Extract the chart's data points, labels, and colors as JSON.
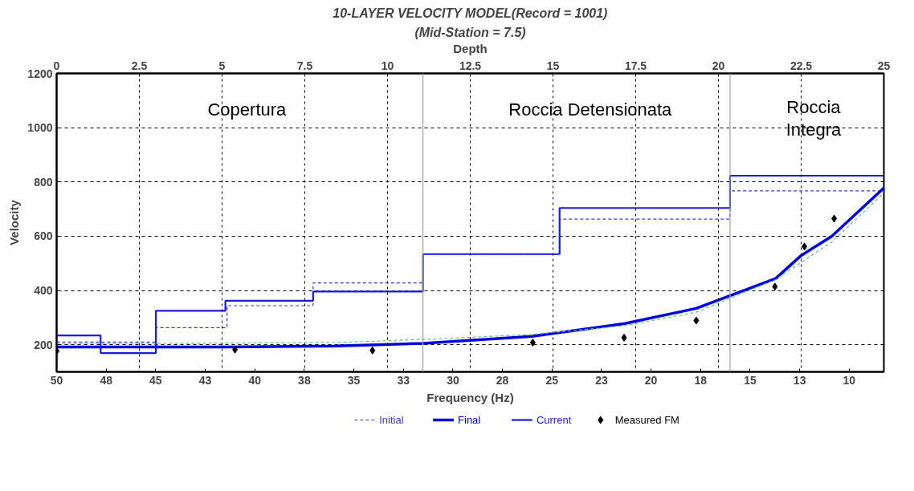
{
  "chart_data": {
    "type": "line",
    "title": "10-LAYER VELOCITY MODEL(Record = 1001)",
    "subtitle": "(Mid-Station = 7.5)",
    "xlabel": "Frequency (Hz)",
    "x2label": "Depth",
    "ylabel": "Velocity",
    "xlim": [
      50,
      8.25
    ],
    "xticks": [
      50,
      {
        "value": 47.5,
        "label": "48"
      },
      45,
      {
        "value": 42.5,
        "label": "43"
      },
      40,
      {
        "value": 37.5,
        "label": "38"
      },
      35,
      {
        "value": 32.5,
        "label": "33"
      },
      30,
      {
        "value": 27.5,
        "label": "28"
      },
      25,
      {
        "value": 22.5,
        "label": "23"
      },
      20,
      {
        "value": 17.5,
        "label": "18"
      },
      15,
      {
        "value": 12.5,
        "label": "13"
      },
      10
    ],
    "x2lim": [
      0,
      25
    ],
    "x2ticks": [
      0,
      2.5,
      5,
      7.5,
      10,
      12.5,
      15,
      17.5,
      20,
      22.5,
      25
    ],
    "ylim": [
      100,
      1200
    ],
    "yticks": [
      200,
      400,
      600,
      800,
      1000,
      1200
    ],
    "grid": true,
    "legend": "bottom",
    "series": [
      {
        "name": "Initial",
        "type": "step",
        "axis": "x2",
        "color": "#3a3ad8",
        "line_style": "dashed",
        "x": [
          0,
          1.33,
          3.0,
          5.15,
          7.75,
          11.07,
          15.2,
          20.35,
          25
        ],
        "values": [
          210,
          210,
          263,
          344,
          428,
          534,
          663,
          767,
          767
        ]
      },
      {
        "name": "Final",
        "color": "#0000e0",
        "line_style": "solid",
        "x": [
          50,
          41.42,
          35.88,
          31.51,
          26.01,
          21.32,
          17.72,
          13.71,
          12.42,
          10.88,
          8.25
        ],
        "values": [
          192,
          192,
          195,
          205,
          231,
          278,
          334,
          444,
          529,
          600,
          778
        ]
      },
      {
        "name": "Current",
        "type": "step",
        "axis": "x2",
        "color": "#1a1ae6",
        "line_style": "solid",
        "x": [
          0,
          1.33,
          3.0,
          5.1,
          7.75,
          11.07,
          15.2,
          20.35,
          25
        ],
        "values": [
          234,
          169,
          325,
          362,
          396,
          534,
          704,
          823,
          823
        ]
      },
      {
        "name": "Measured FM",
        "type": "scatter",
        "color": "#000000",
        "marker": "diamond",
        "x": [
          50,
          41.0,
          34.06,
          25.97,
          21.36,
          17.72,
          13.75,
          12.26,
          10.76
        ],
        "values": [
          177,
          182,
          179,
          208,
          226,
          289,
          414,
          562,
          665
        ]
      },
      {
        "type": "line",
        "color": "#5cc87a",
        "line_style": "dashed",
        "x": [
          50,
          35.88,
          31.0,
          26.01,
          21.32,
          17.72,
          13.71,
          10.88,
          8.25
        ],
        "values": [
          203,
          208,
          221,
          238,
          270,
          320,
          440,
          579,
          759
        ]
      }
    ],
    "ref_lines": [
      {
        "axis": "x2",
        "value": 11.07,
        "color": "#a0a0a0"
      },
      {
        "axis": "x2",
        "value": 20.35,
        "color": "#a0a0a0"
      }
    ],
    "annotations": [
      "Copertura",
      "Roccia Detensionata",
      "Roccia\nIntegra"
    ]
  }
}
